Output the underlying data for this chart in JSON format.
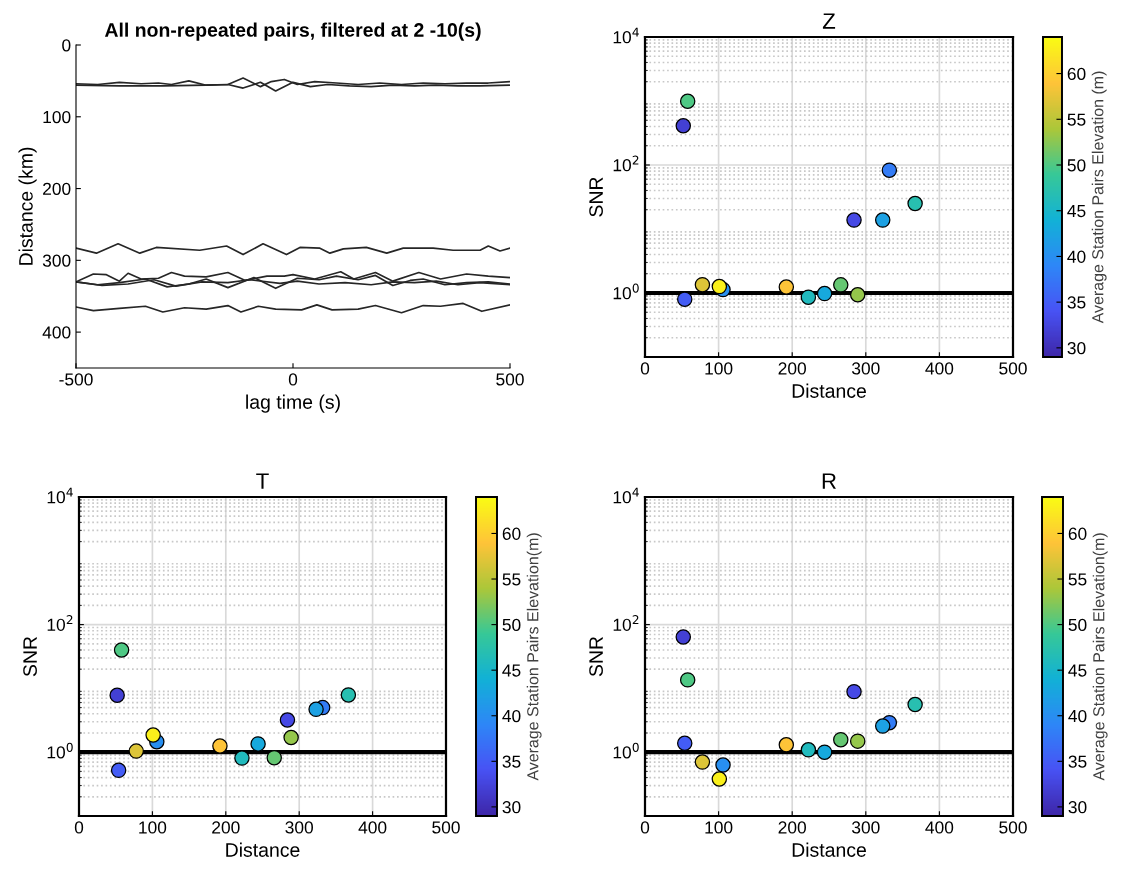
{
  "chart_data": [
    {
      "type": "line",
      "title": "All non-repeated pairs, filtered at 2 -10(s)",
      "xlabel": "lag time (s)",
      "ylabel": "Distance (km)",
      "xlim": [
        -500,
        500
      ],
      "xticks": [
        {
          "value": -500,
          "label": "-500"
        },
        0,
        500
      ],
      "ylim": [
        450,
        0
      ],
      "yticks": [
        0,
        100,
        200,
        300,
        400
      ],
      "grid": false,
      "series": [
        {
          "color": "#262626",
          "x": [
            -500,
            -450,
            -400,
            -350,
            -310,
            -280,
            -240,
            -200,
            -150,
            -115,
            -75,
            -50,
            -20,
            10,
            50,
            100,
            150,
            200,
            250,
            300,
            350,
            400,
            450,
            500
          ],
          "values": [
            54,
            55,
            52,
            54,
            53,
            55,
            50,
            56,
            55,
            46,
            58,
            51,
            48,
            55,
            51,
            53,
            55,
            53,
            55,
            53,
            54,
            53,
            53,
            51
          ]
        },
        {
          "color": "#262626",
          "x": [
            -500,
            -400,
            -300,
            -200,
            -150,
            -115,
            -75,
            -40,
            0,
            40,
            80,
            130,
            180,
            230,
            280,
            330,
            380,
            430,
            500
          ],
          "values": [
            56,
            57,
            57,
            56,
            55,
            60,
            52,
            64,
            52,
            58,
            55,
            57,
            58,
            56,
            57,
            56,
            57,
            57,
            56
          ]
        },
        {
          "color": "#262626",
          "x": [
            -500,
            -453,
            -403,
            -353,
            -315,
            -215,
            -153,
            -115,
            -69,
            -15,
            16,
            62,
            85,
            116,
            169,
            216,
            254,
            323,
            369,
            431,
            450,
            477,
            500
          ],
          "values": [
            283,
            290,
            277,
            290,
            282,
            286,
            280,
            292,
            277,
            292,
            282,
            283,
            290,
            284,
            282,
            290,
            283,
            283,
            286,
            286,
            280,
            287,
            283
          ]
        },
        {
          "color": "#262626",
          "x": [
            -500,
            -460,
            -430,
            -400,
            -380,
            -350,
            -310,
            -280,
            -250,
            -200,
            -150,
            -110,
            -60,
            -20,
            0,
            50,
            110,
            140,
            190,
            230,
            290,
            340,
            400,
            450,
            500
          ],
          "values": [
            330,
            319,
            320,
            329,
            318,
            326,
            325,
            317,
            322,
            323,
            317,
            328,
            322,
            322,
            320,
            326,
            316,
            326,
            317,
            329,
            317,
            326,
            319,
            322,
            324
          ]
        },
        {
          "color": "#262626",
          "x": [
            -500,
            -450,
            -400,
            -340,
            -290,
            -240,
            -200,
            -150,
            -90,
            -40,
            10,
            60,
            100,
            150,
            190,
            230,
            270,
            300,
            350,
            400,
            450,
            500
          ],
          "values": [
            330,
            334,
            331,
            326,
            337,
            333,
            326,
            338,
            324,
            339,
            325,
            327,
            322,
            327,
            321,
            335,
            328,
            326,
            334,
            331,
            330,
            333
          ]
        },
        {
          "color": "#262626",
          "x": [
            -500,
            -440,
            -380,
            -320,
            -270,
            -210,
            -150,
            -100,
            -30,
            10,
            60,
            120,
            180,
            230,
            280,
            330,
            380,
            430,
            500
          ],
          "values": [
            330,
            335,
            333,
            327,
            336,
            330,
            331,
            327,
            332,
            329,
            333,
            331,
            334,
            330,
            331,
            329,
            334,
            331,
            334
          ]
        },
        {
          "color": "#262626",
          "x": [
            -500,
            -460,
            -400,
            -340,
            -300,
            -250,
            -200,
            -150,
            -120,
            -80,
            -40,
            20,
            55,
            90,
            150,
            190,
            250,
            300,
            340,
            392,
            435,
            500
          ],
          "values": [
            365,
            370,
            367,
            364,
            372,
            366,
            368,
            363,
            372,
            364,
            368,
            369,
            362,
            369,
            368,
            363,
            373,
            363,
            364,
            360,
            371,
            362
          ]
        }
      ]
    },
    {
      "type": "scatter",
      "title": "Z",
      "xlabel": "Distance",
      "ylabel": "SNR",
      "clabel": "Average Station Pairs Elevation (m)",
      "clim": [
        29,
        64
      ],
      "cticks": [
        30,
        35,
        40,
        45,
        50,
        55,
        60
      ],
      "log": "y",
      "xlim": [
        0,
        500
      ],
      "xticks": [
        0,
        100,
        200,
        300,
        400,
        500
      ],
      "ylim": [
        0.1,
        10000
      ],
      "yticks": [
        {
          "value": 1,
          "label": "10$^{0}$"
        },
        {
          "value": 100,
          "label": "10$^{2}$"
        },
        {
          "value": 10000,
          "label": "10$^{4}$"
        }
      ],
      "grid": true,
      "marker": "circle",
      "ref_lines": [
        {
          "axis": "y",
          "value": 1,
          "color": "#000000"
        }
      ],
      "x": [
        52,
        58,
        54,
        78,
        106,
        101,
        192,
        222,
        244,
        266,
        289,
        284,
        332,
        323,
        367
      ],
      "values": [
        410,
        990,
        0.8,
        1.35,
        1.13,
        1.26,
        1.24,
        0.86,
        0.98,
        1.34,
        0.94,
        13.8,
        83,
        13.8,
        25
      ],
      "cvalues": [
        32,
        50,
        35,
        57,
        40,
        63,
        59,
        46,
        43,
        51,
        53,
        33,
        38,
        42,
        47
      ]
    },
    {
      "type": "scatter",
      "title": "T",
      "xlabel": "Distance",
      "ylabel": "SNR",
      "clabel": "Average Station Pairs Elevation(m)",
      "clim": [
        29,
        64
      ],
      "cticks": [
        30,
        35,
        40,
        45,
        50,
        55,
        60
      ],
      "log": "y",
      "xlim": [
        0,
        500
      ],
      "xticks": [
        0,
        100,
        200,
        300,
        400,
        500
      ],
      "ylim": [
        0.1,
        10000
      ],
      "yticks": [
        {
          "value": 1,
          "label": "10$^{0}$"
        },
        {
          "value": 100,
          "label": "10$^{2}$"
        },
        {
          "value": 10000,
          "label": "10$^{4}$"
        }
      ],
      "grid": true,
      "marker": "circle",
      "ref_lines": [
        {
          "axis": "y",
          "value": 1,
          "color": "#000000"
        }
      ],
      "x": [
        52,
        58,
        54,
        78,
        106,
        101,
        192,
        222,
        244,
        266,
        289,
        284,
        332,
        323,
        367
      ],
      "values": [
        7.8,
        40,
        0.52,
        1.04,
        1.46,
        1.86,
        1.25,
        0.81,
        1.35,
        0.82,
        1.7,
        3.2,
        5.0,
        4.7,
        7.9
      ],
      "cvalues": [
        32,
        50,
        35,
        57,
        40,
        63,
        59,
        46,
        43,
        51,
        53,
        33,
        38,
        42,
        47
      ]
    },
    {
      "type": "scatter",
      "title": "R",
      "xlabel": "Distance",
      "ylabel": "SNR",
      "clabel": "Average Station Pairs Elevation(m)",
      "clim": [
        29,
        64
      ],
      "cticks": [
        30,
        35,
        40,
        45,
        50,
        55,
        60
      ],
      "log": "y",
      "xlim": [
        0,
        500
      ],
      "xticks": [
        0,
        100,
        200,
        300,
        400,
        500
      ],
      "ylim": [
        0.1,
        10000
      ],
      "yticks": [
        {
          "value": 1,
          "label": "10$^{0}$"
        },
        {
          "value": 100,
          "label": "10$^{2}$"
        },
        {
          "value": 10000,
          "label": "10$^{4}$"
        }
      ],
      "grid": true,
      "marker": "circle",
      "ref_lines": [
        {
          "axis": "y",
          "value": 1,
          "color": "#000000"
        }
      ],
      "x": [
        52,
        58,
        54,
        78,
        106,
        101,
        192,
        222,
        244,
        266,
        289,
        284,
        332,
        323,
        367
      ],
      "values": [
        64,
        13.6,
        1.38,
        0.7,
        0.63,
        0.38,
        1.31,
        1.09,
        1.0,
        1.57,
        1.49,
        8.9,
        2.9,
        2.57,
        5.6
      ],
      "cvalues": [
        32,
        50,
        35,
        57,
        40,
        63,
        59,
        46,
        43,
        51,
        53,
        33,
        38,
        42,
        47
      ]
    }
  ]
}
